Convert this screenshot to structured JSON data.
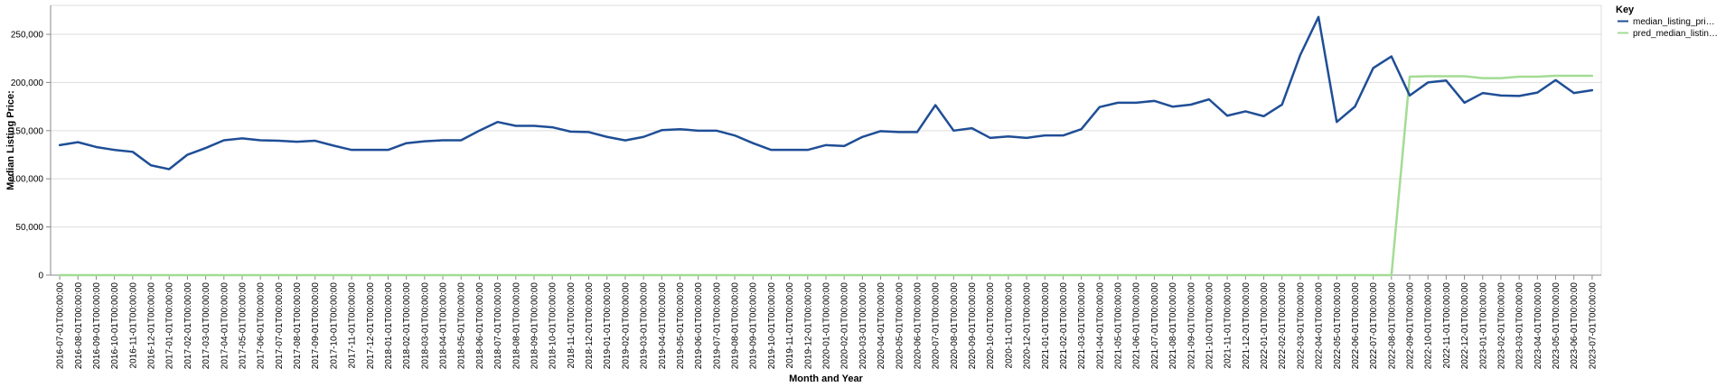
{
  "chart_data": {
    "type": "line",
    "xlabel": "Month and Year",
    "ylabel": "Median Listing Price:",
    "ylim": [
      0,
      280000
    ],
    "yticks": [
      0,
      50000,
      100000,
      150000,
      200000,
      250000
    ],
    "ytick_labels": [
      "0",
      "50,000",
      "100,000",
      "150,000",
      "200,000",
      "250,000"
    ],
    "grid": true,
    "legend": {
      "title": "Key",
      "placement": "top-right",
      "entries": [
        "median_listing_pri…",
        "pred_median_listin…"
      ]
    },
    "x": [
      "2016-07-01T00:00:00",
      "2016-08-01T00:00:00",
      "2016-09-01T00:00:00",
      "2016-10-01T00:00:00",
      "2016-11-01T00:00:00",
      "2016-12-01T00:00:00",
      "2017-01-01T00:00:00",
      "2017-02-01T00:00:00",
      "2017-03-01T00:00:00",
      "2017-04-01T00:00:00",
      "2017-05-01T00:00:00",
      "2017-06-01T00:00:00",
      "2017-07-01T00:00:00",
      "2017-08-01T00:00:00",
      "2017-09-01T00:00:00",
      "2017-10-01T00:00:00",
      "2017-11-01T00:00:00",
      "2017-12-01T00:00:00",
      "2018-01-01T00:00:00",
      "2018-02-01T00:00:00",
      "2018-03-01T00:00:00",
      "2018-04-01T00:00:00",
      "2018-05-01T00:00:00",
      "2018-06-01T00:00:00",
      "2018-07-01T00:00:00",
      "2018-08-01T00:00:00",
      "2018-09-01T00:00:00",
      "2018-10-01T00:00:00",
      "2018-11-01T00:00:00",
      "2018-12-01T00:00:00",
      "2019-01-01T00:00:00",
      "2019-02-01T00:00:00",
      "2019-03-01T00:00:00",
      "2019-04-01T00:00:00",
      "2019-05-01T00:00:00",
      "2019-06-01T00:00:00",
      "2019-07-01T00:00:00",
      "2019-08-01T00:00:00",
      "2019-09-01T00:00:00",
      "2019-10-01T00:00:00",
      "2019-11-01T00:00:00",
      "2019-12-01T00:00:00",
      "2020-01-01T00:00:00",
      "2020-02-01T00:00:00",
      "2020-03-01T00:00:00",
      "2020-04-01T00:00:00",
      "2020-05-01T00:00:00",
      "2020-06-01T00:00:00",
      "2020-07-01T00:00:00",
      "2020-08-01T00:00:00",
      "2020-09-01T00:00:00",
      "2020-10-01T00:00:00",
      "2020-11-01T00:00:00",
      "2020-12-01T00:00:00",
      "2021-01-01T00:00:00",
      "2021-02-01T00:00:00",
      "2021-03-01T00:00:00",
      "2021-04-01T00:00:00",
      "2021-05-01T00:00:00",
      "2021-06-01T00:00:00",
      "2021-07-01T00:00:00",
      "2021-08-01T00:00:00",
      "2021-09-01T00:00:00",
      "2021-10-01T00:00:00",
      "2021-11-01T00:00:00",
      "2021-12-01T00:00:00",
      "2022-01-01T00:00:00",
      "2022-02-01T00:00:00",
      "2022-03-01T00:00:00",
      "2022-04-01T00:00:00",
      "2022-05-01T00:00:00",
      "2022-06-01T00:00:00",
      "2022-07-01T00:00:00",
      "2022-08-01T00:00:00",
      "2022-09-01T00:00:00",
      "2022-10-01T00:00:00",
      "2022-11-01T00:00:00",
      "2022-12-01T00:00:00",
      "2023-01-01T00:00:00",
      "2023-02-01T00:00:00",
      "2023-03-01T00:00:00",
      "2023-04-01T00:00:00",
      "2023-05-01T00:00:00",
      "2023-06-01T00:00:00",
      "2023-07-01T00:00:00"
    ],
    "series": [
      {
        "name": "median_listing_pri…",
        "color": "#1f4e96",
        "values": [
          135000,
          138000,
          133000,
          130000,
          128000,
          114000,
          110000,
          125000,
          132000,
          140000,
          142000,
          140000,
          139500,
          138500,
          139500,
          134500,
          130000,
          130000,
          130000,
          137000,
          139000,
          140000,
          140000,
          150000,
          159000,
          155000,
          155000,
          153500,
          149000,
          148500,
          143500,
          139900,
          143500,
          150500,
          151500,
          150000,
          150000,
          145000,
          137000,
          130000,
          130000,
          130000,
          135000,
          134000,
          143500,
          149500,
          148500,
          148500,
          176500,
          150000,
          152500,
          142500,
          144000,
          142500,
          145000,
          145000,
          151500,
          174500,
          179000,
          179000,
          180900,
          174900,
          177000,
          182500,
          165500,
          170000,
          165000,
          177000,
          228500,
          268000,
          159000,
          175000,
          215000,
          227000,
          186500,
          200000,
          202000,
          179000,
          189000,
          186500,
          186000,
          189500,
          202500,
          189000,
          192000
        ]
      },
      {
        "name": "pred_median_listin…",
        "color": "#a3dc94",
        "values": [
          0,
          0,
          0,
          0,
          0,
          0,
          0,
          0,
          0,
          0,
          0,
          0,
          0,
          0,
          0,
          0,
          0,
          0,
          0,
          0,
          0,
          0,
          0,
          0,
          0,
          0,
          0,
          0,
          0,
          0,
          0,
          0,
          0,
          0,
          0,
          0,
          0,
          0,
          0,
          0,
          0,
          0,
          0,
          0,
          0,
          0,
          0,
          0,
          0,
          0,
          0,
          0,
          0,
          0,
          0,
          0,
          0,
          0,
          0,
          0,
          0,
          0,
          0,
          0,
          0,
          0,
          0,
          0,
          0,
          0,
          0,
          0,
          0,
          0,
          206000,
          206500,
          206500,
          206500,
          204500,
          204500,
          206000,
          206000,
          207000,
          207000,
          207000
        ]
      }
    ]
  }
}
